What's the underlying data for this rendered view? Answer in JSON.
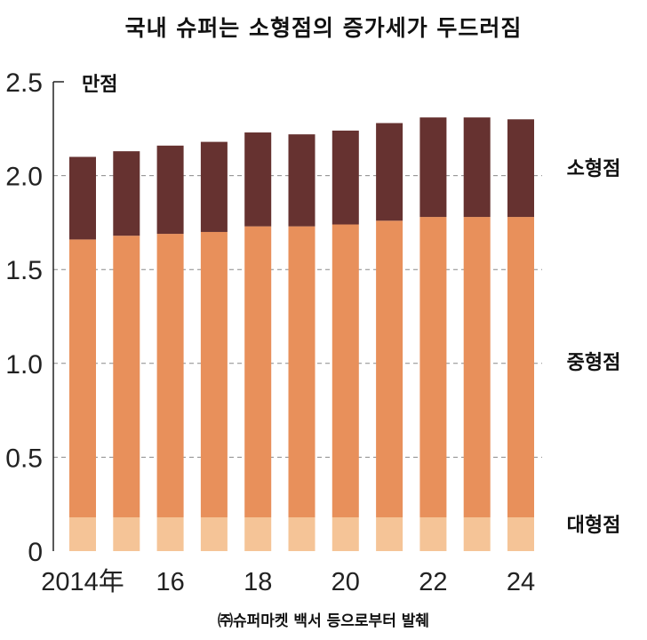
{
  "chart_data": {
    "type": "bar",
    "stacked": true,
    "title": "국내 슈퍼는 소형점의 증가세가 두드러짐",
    "source": "㈜슈퍼마켓 백서 등으로부터 발췌",
    "y_unit": "만점",
    "ylim": [
      0,
      2.5
    ],
    "y_ticks": [
      "0",
      "0.5",
      "1.0",
      "1.5",
      "2.0",
      "2.5"
    ],
    "y_tick_values": [
      0,
      0.5,
      1.0,
      1.5,
      2.0,
      2.5
    ],
    "grid": true,
    "categories": [
      "2014",
      "2015",
      "2016",
      "2017",
      "2018",
      "2019",
      "2020",
      "2021",
      "2022",
      "2023",
      "2024"
    ],
    "x_tick_labels": [
      "2014年",
      "",
      "16",
      "",
      "18",
      "",
      "20",
      "",
      "22",
      "",
      "24"
    ],
    "series": [
      {
        "name": "대형점",
        "color": "#f5c497",
        "values": [
          0.18,
          0.18,
          0.18,
          0.18,
          0.18,
          0.18,
          0.18,
          0.18,
          0.18,
          0.18,
          0.18
        ]
      },
      {
        "name": "중형점",
        "color": "#e8905b",
        "values": [
          1.48,
          1.5,
          1.51,
          1.52,
          1.55,
          1.55,
          1.56,
          1.58,
          1.6,
          1.6,
          1.6
        ]
      },
      {
        "name": "소형점",
        "color": "#663230",
        "values": [
          0.44,
          0.45,
          0.47,
          0.48,
          0.5,
          0.49,
          0.5,
          0.52,
          0.53,
          0.53,
          0.52
        ]
      }
    ]
  }
}
